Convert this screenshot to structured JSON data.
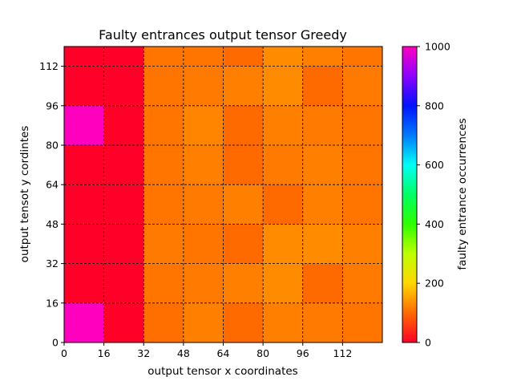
{
  "chart_data": {
    "type": "heatmap",
    "title": "Faulty entrances output tensor Greedy",
    "xlabel": "output tensor x coordinates",
    "ylabel": "output tensot y cordintes",
    "colorbar_label": "faulty entrance occurrences",
    "cell_size": 16,
    "xlim": [
      0,
      128
    ],
    "ylim": [
      0,
      120
    ],
    "x_ticks": [
      0,
      16,
      32,
      48,
      64,
      80,
      96,
      112
    ],
    "y_ticks": [
      0,
      16,
      32,
      48,
      64,
      80,
      96,
      112
    ],
    "colorbar_range": [
      0,
      1000
    ],
    "colorbar_ticks": [
      0,
      200,
      400,
      600,
      800,
      1000
    ],
    "colormap": "gist_rainbow_r",
    "grid": true,
    "values_rows_bottom_to_top": [
      [
        1000,
        0,
        105,
        120,
        100,
        120,
        115,
        110
      ],
      [
        0,
        0,
        110,
        115,
        120,
        130,
        100,
        115
      ],
      [
        0,
        0,
        115,
        110,
        100,
        130,
        130,
        120
      ],
      [
        0,
        0,
        110,
        115,
        120,
        100,
        120,
        110
      ],
      [
        0,
        0,
        110,
        120,
        100,
        115,
        120,
        110
      ],
      [
        1000,
        0,
        110,
        125,
        100,
        120,
        115,
        110
      ],
      [
        0,
        0,
        110,
        115,
        120,
        130,
        100,
        115
      ],
      [
        0,
        0,
        110,
        110,
        100,
        130,
        120,
        110
      ]
    ]
  }
}
